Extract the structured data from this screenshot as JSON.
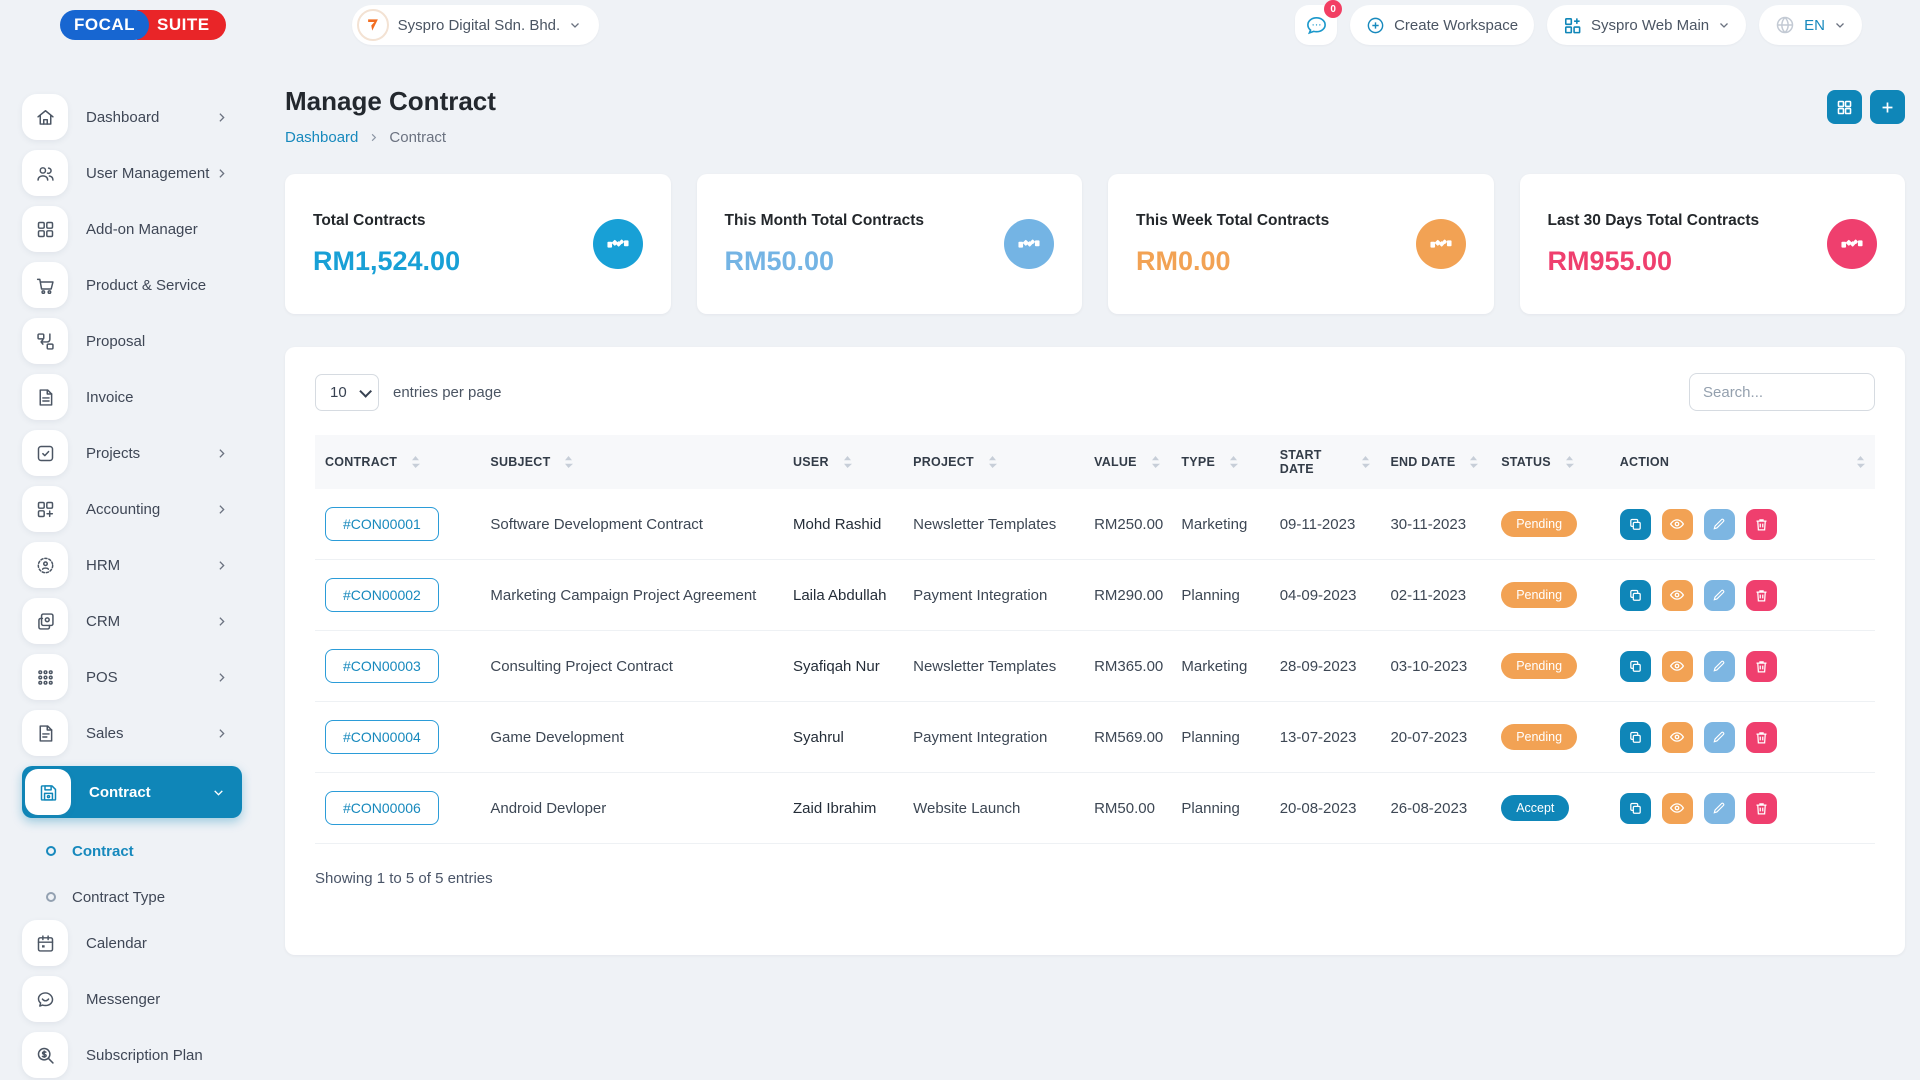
{
  "brand": {
    "focal": "FOCAL",
    "suite": "SUITE"
  },
  "header": {
    "workspace": "Syspro Digital Sdn. Bhd.",
    "chat_badge": "0",
    "create_workspace": "Create Workspace",
    "app_switcher": "Syspro Web Main",
    "language": "EN"
  },
  "sidebar": {
    "items": [
      {
        "label": "Dashboard",
        "icon": "home",
        "chevron": true
      },
      {
        "label": "User Management",
        "icon": "users",
        "chevron": true
      },
      {
        "label": "Add-on Manager",
        "icon": "addon",
        "chevron": false
      },
      {
        "label": "Product & Service",
        "icon": "cart",
        "chevron": false
      },
      {
        "label": "Proposal",
        "icon": "proposal",
        "chevron": false
      },
      {
        "label": "Invoice",
        "icon": "invoice",
        "chevron": false
      },
      {
        "label": "Projects",
        "icon": "projects",
        "chevron": true
      },
      {
        "label": "Accounting",
        "icon": "accounting",
        "chevron": true
      },
      {
        "label": "HRM",
        "icon": "hrm",
        "chevron": true
      },
      {
        "label": "CRM",
        "icon": "crm",
        "chevron": true
      },
      {
        "label": "POS",
        "icon": "pos",
        "chevron": true
      },
      {
        "label": "Sales",
        "icon": "sales",
        "chevron": true
      },
      {
        "label": "Contract",
        "icon": "contract",
        "chevron": true,
        "active": true,
        "expanded": true
      },
      {
        "label": "Contract",
        "sub": true,
        "active": true
      },
      {
        "label": "Contract Type",
        "sub": true
      },
      {
        "label": "Calendar",
        "icon": "calendar",
        "chevron": false
      },
      {
        "label": "Messenger",
        "icon": "messenger",
        "chevron": false
      },
      {
        "label": "Subscription Plan",
        "icon": "subscription",
        "chevron": false
      }
    ]
  },
  "page": {
    "title": "Manage Contract",
    "breadcrumb_root": "Dashboard",
    "breadcrumb_current": "Contract"
  },
  "stats": [
    {
      "label": "Total Contracts",
      "value": "RM1,524.00",
      "color": "#18a0d6"
    },
    {
      "label": "This Month Total Contracts",
      "value": "RM50.00",
      "color": "#74b4e4"
    },
    {
      "label": "This Week Total Contracts",
      "value": "RM0.00",
      "color": "#f2a254"
    },
    {
      "label": "Last 30 Days Total Contracts",
      "value": "RM955.00",
      "color": "#ef3f6e"
    }
  ],
  "table": {
    "entries_value": "10",
    "entries_label": "entries per page",
    "search_placeholder": "Search...",
    "columns": [
      "CONTRACT",
      "SUBJECT",
      "USER",
      "PROJECT",
      "VALUE",
      "TYPE",
      "START DATE",
      "END DATE",
      "STATUS",
      "ACTION"
    ],
    "rows": [
      {
        "contract": "#CON00001",
        "subject": "Software Development Contract",
        "user": "Mohd Rashid",
        "project": "Newsletter Templates",
        "value": "RM250.00",
        "type": "Marketing",
        "start": "09-11-2023",
        "end": "30-11-2023",
        "status": "Pending"
      },
      {
        "contract": "#CON00002",
        "subject": "Marketing Campaign Project Agreement",
        "user": "Laila Abdullah",
        "project": "Payment Integration",
        "value": "RM290.00",
        "type": "Planning",
        "start": "04-09-2023",
        "end": "02-11-2023",
        "status": "Pending"
      },
      {
        "contract": "#CON00003",
        "subject": "Consulting Project Contract",
        "user": "Syafiqah Nur",
        "project": "Newsletter Templates",
        "value": "RM365.00",
        "type": "Marketing",
        "start": "28-09-2023",
        "end": "03-10-2023",
        "status": "Pending"
      },
      {
        "contract": "#CON00004",
        "subject": "Game Development",
        "user": "Syahrul",
        "project": "Payment Integration",
        "value": "RM569.00",
        "type": "Planning",
        "start": "13-07-2023",
        "end": "20-07-2023",
        "status": "Pending"
      },
      {
        "contract": "#CON00006",
        "subject": "Android Devloper",
        "user": "Zaid Ibrahim",
        "project": "Website Launch",
        "value": "RM50.00",
        "type": "Planning",
        "start": "20-08-2023",
        "end": "26-08-2023",
        "status": "Accept"
      }
    ],
    "footer": "Showing 1 to 5 of 5 entries"
  },
  "colors": {
    "primary": "#0f86b8",
    "link": "#1789bd",
    "status": {
      "Pending": "#f2a254",
      "Accept": "#0f86b8"
    },
    "actions": {
      "duplicate": "#0f86b8",
      "view": "#f2a254",
      "edit": "#7db6e2",
      "delete": "#ef3f6e"
    },
    "badge": "#f23f63",
    "logo_blue": "#1766d1",
    "logo_red": "#e92528"
  }
}
